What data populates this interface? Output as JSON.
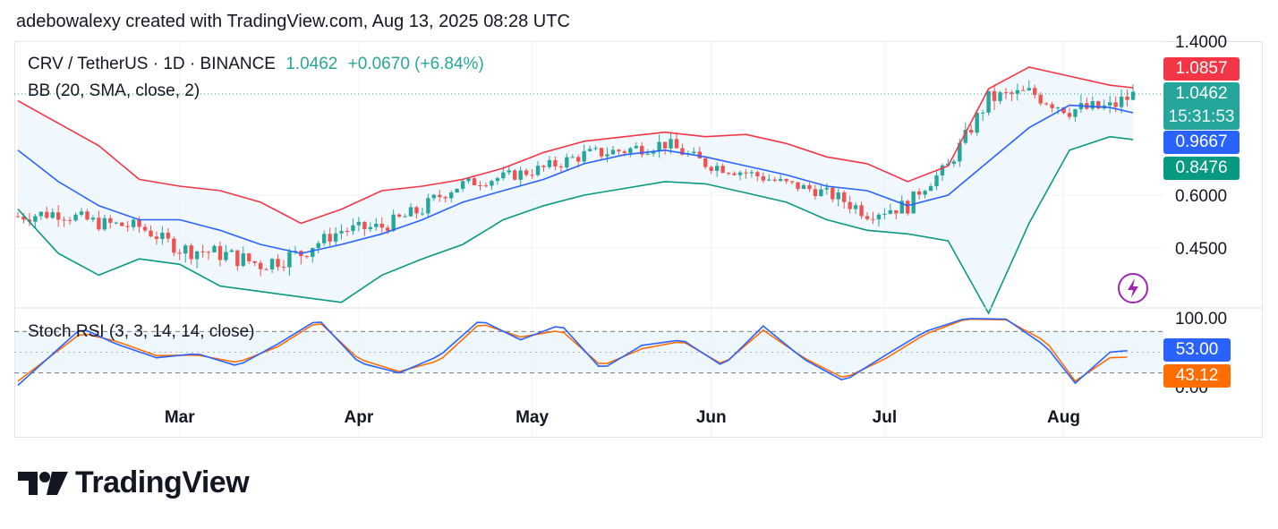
{
  "header": {
    "text": "adebowalexy created with TradingView.com, Aug 13, 2025 08:28 UTC"
  },
  "legend": {
    "symbol": "CRV / TetherUS · 1D · BINANCE",
    "price": "1.0462",
    "change": "+0.0670 (+6.84%)",
    "indicator": "BB (20, SMA, close, 2)"
  },
  "stoch_legend": "Stoch RSI (3, 3, 14, 14, close)",
  "price_tags": {
    "upper": "1.0857",
    "last": "1.0462",
    "countdown": "15:31:53",
    "basis": "0.9667",
    "lower": "0.8476"
  },
  "stoch_tags": {
    "k": "53.00",
    "d": "43.12"
  },
  "colors": {
    "up": "#26a69a",
    "down": "#ef5350",
    "upper_band": "#f23645",
    "basis": "#2962ff",
    "lower_band": "#089981",
    "k_line": "#2962ff",
    "d_line": "#ff6d00",
    "band_fill": "#e3f2fd",
    "last_tag": "#26a69a",
    "brand": "#131722"
  },
  "icons": {
    "replay": "lightning-icon",
    "logo": "tradingview-logo-icon"
  },
  "brand": {
    "name": "TradingView"
  },
  "chart_data": [
    {
      "type": "candlestick",
      "title": "CRV / TetherUS · 1D · BINANCE",
      "overlay": "BB (20, SMA, close, 2)",
      "y_ticks": [
        "1.4000",
        "0.6000",
        "0.4500"
      ],
      "y_tick_values": [
        1.4,
        0.6,
        0.45
      ],
      "x_ticks": [
        "Mar",
        "Apr",
        "May",
        "Jun",
        "Jul",
        "Aug"
      ],
      "x_tick_dates": [
        "2025-03-01",
        "2025-04-01",
        "2025-05-01",
        "2025-06-01",
        "2025-07-01",
        "2025-08-01"
      ],
      "series": [
        {
          "name": "upper",
          "points": [
            [
              "2025-02-01",
              1.02
            ],
            [
              "2025-02-08",
              0.92
            ],
            [
              "2025-02-15",
              0.82
            ],
            [
              "2025-02-22",
              0.67
            ],
            [
              "2025-03-01",
              0.64
            ],
            [
              "2025-03-08",
              0.62
            ],
            [
              "2025-03-15",
              0.58
            ],
            [
              "2025-03-22",
              0.52
            ],
            [
              "2025-03-29",
              0.56
            ],
            [
              "2025-04-05",
              0.62
            ],
            [
              "2025-04-12",
              0.64
            ],
            [
              "2025-04-19",
              0.67
            ],
            [
              "2025-04-26",
              0.72
            ],
            [
              "2025-05-03",
              0.79
            ],
            [
              "2025-05-10",
              0.84
            ],
            [
              "2025-05-17",
              0.86
            ],
            [
              "2025-05-24",
              0.88
            ],
            [
              "2025-05-31",
              0.86
            ],
            [
              "2025-06-07",
              0.87
            ],
            [
              "2025-06-14",
              0.83
            ],
            [
              "2025-06-21",
              0.77
            ],
            [
              "2025-06-28",
              0.74
            ],
            [
              "2025-07-05",
              0.66
            ],
            [
              "2025-07-12",
              0.73
            ],
            [
              "2025-07-19",
              1.08
            ],
            [
              "2025-07-26",
              1.2
            ],
            [
              "2025-08-02",
              1.15
            ],
            [
              "2025-08-09",
              1.1
            ],
            [
              "2025-08-13",
              1.0857
            ]
          ]
        },
        {
          "name": "basis",
          "points": [
            [
              "2025-02-01",
              0.8
            ],
            [
              "2025-02-08",
              0.66
            ],
            [
              "2025-02-15",
              0.57
            ],
            [
              "2025-02-22",
              0.53
            ],
            [
              "2025-03-01",
              0.53
            ],
            [
              "2025-03-08",
              0.5
            ],
            [
              "2025-03-15",
              0.46
            ],
            [
              "2025-03-22",
              0.44
            ],
            [
              "2025-03-29",
              0.46
            ],
            [
              "2025-04-05",
              0.49
            ],
            [
              "2025-04-12",
              0.53
            ],
            [
              "2025-04-19",
              0.58
            ],
            [
              "2025-04-26",
              0.62
            ],
            [
              "2025-05-03",
              0.67
            ],
            [
              "2025-05-10",
              0.74
            ],
            [
              "2025-05-17",
              0.78
            ],
            [
              "2025-05-24",
              0.8
            ],
            [
              "2025-05-31",
              0.77
            ],
            [
              "2025-06-07",
              0.73
            ],
            [
              "2025-06-14",
              0.69
            ],
            [
              "2025-06-21",
              0.64
            ],
            [
              "2025-06-28",
              0.62
            ],
            [
              "2025-07-05",
              0.57
            ],
            [
              "2025-07-12",
              0.6
            ],
            [
              "2025-07-19",
              0.75
            ],
            [
              "2025-07-26",
              0.9
            ],
            [
              "2025-08-02",
              1.0
            ],
            [
              "2025-08-09",
              0.99
            ],
            [
              "2025-08-13",
              0.9667
            ]
          ]
        },
        {
          "name": "lower",
          "points": [
            [
              "2025-02-01",
              0.56
            ],
            [
              "2025-02-08",
              0.44
            ],
            [
              "2025-02-15",
              0.4
            ],
            [
              "2025-02-22",
              0.43
            ],
            [
              "2025-03-01",
              0.42
            ],
            [
              "2025-03-08",
              0.38
            ],
            [
              "2025-03-15",
              0.37
            ],
            [
              "2025-03-22",
              0.36
            ],
            [
              "2025-03-29",
              0.35
            ],
            [
              "2025-04-05",
              0.4
            ],
            [
              "2025-04-12",
              0.43
            ],
            [
              "2025-04-19",
              0.46
            ],
            [
              "2025-04-26",
              0.53
            ],
            [
              "2025-05-03",
              0.57
            ],
            [
              "2025-05-10",
              0.6
            ],
            [
              "2025-05-17",
              0.63
            ],
            [
              "2025-05-24",
              0.66
            ],
            [
              "2025-05-31",
              0.65
            ],
            [
              "2025-06-07",
              0.61
            ],
            [
              "2025-06-14",
              0.58
            ],
            [
              "2025-06-21",
              0.53
            ],
            [
              "2025-06-28",
              0.5
            ],
            [
              "2025-07-05",
              0.49
            ],
            [
              "2025-07-12",
              0.47
            ],
            [
              "2025-07-19",
              0.33
            ],
            [
              "2025-07-26",
              0.52
            ],
            [
              "2025-08-02",
              0.8
            ],
            [
              "2025-08-09",
              0.86
            ],
            [
              "2025-08-13",
              0.8476
            ]
          ]
        },
        {
          "name": "close",
          "points": [
            [
              "2025-02-01",
              0.54
            ],
            [
              "2025-02-08",
              0.55
            ],
            [
              "2025-02-15",
              0.52
            ],
            [
              "2025-02-22",
              0.51
            ],
            [
              "2025-03-01",
              0.45
            ],
            [
              "2025-03-08",
              0.44
            ],
            [
              "2025-03-15",
              0.42
            ],
            [
              "2025-03-22",
              0.44
            ],
            [
              "2025-03-29",
              0.5
            ],
            [
              "2025-04-05",
              0.51
            ],
            [
              "2025-04-12",
              0.56
            ],
            [
              "2025-04-19",
              0.65
            ],
            [
              "2025-04-26",
              0.68
            ],
            [
              "2025-05-03",
              0.72
            ],
            [
              "2025-05-10",
              0.78
            ],
            [
              "2025-05-17",
              0.8
            ],
            [
              "2025-05-24",
              0.83
            ],
            [
              "2025-05-31",
              0.74
            ],
            [
              "2025-06-07",
              0.7
            ],
            [
              "2025-06-14",
              0.65
            ],
            [
              "2025-06-21",
              0.61
            ],
            [
              "2025-06-28",
              0.55
            ],
            [
              "2025-07-05",
              0.57
            ],
            [
              "2025-07-12",
              0.73
            ],
            [
              "2025-07-19",
              1.03
            ],
            [
              "2025-07-26",
              1.06
            ],
            [
              "2025-08-02",
              0.98
            ],
            [
              "2025-08-09",
              0.99
            ],
            [
              "2025-08-13",
              1.0462
            ]
          ]
        }
      ]
    },
    {
      "type": "line",
      "title": "Stoch RSI (3, 3, 14, 14, close)",
      "ylim": [
        0,
        100
      ],
      "y_ticks": [
        "100.00",
        "0.00"
      ],
      "bands": [
        80,
        20
      ],
      "series": [
        {
          "name": "K",
          "points": [
            [
              "2025-02-01",
              2
            ],
            [
              "2025-02-12",
              85
            ],
            [
              "2025-02-18",
              62
            ],
            [
              "2025-02-25",
              42
            ],
            [
              "2025-03-04",
              48
            ],
            [
              "2025-03-11",
              30
            ],
            [
              "2025-03-18",
              62
            ],
            [
              "2025-03-25",
              98
            ],
            [
              "2025-04-01",
              35
            ],
            [
              "2025-04-08",
              20
            ],
            [
              "2025-04-15",
              45
            ],
            [
              "2025-04-22",
              97
            ],
            [
              "2025-04-29",
              68
            ],
            [
              "2025-05-06",
              90
            ],
            [
              "2025-05-13",
              25
            ],
            [
              "2025-05-20",
              60
            ],
            [
              "2025-05-27",
              68
            ],
            [
              "2025-06-03",
              30
            ],
            [
              "2025-06-10",
              88
            ],
            [
              "2025-06-17",
              40
            ],
            [
              "2025-06-24",
              8
            ],
            [
              "2025-07-01",
              45
            ],
            [
              "2025-07-08",
              80
            ],
            [
              "2025-07-15",
              99
            ],
            [
              "2025-07-22",
              98
            ],
            [
              "2025-07-29",
              58
            ],
            [
              "2025-08-03",
              5
            ],
            [
              "2025-08-09",
              50
            ],
            [
              "2025-08-13",
              53
            ]
          ]
        },
        {
          "name": "D",
          "points": [
            [
              "2025-02-01",
              8
            ],
            [
              "2025-02-12",
              78
            ],
            [
              "2025-02-18",
              66
            ],
            [
              "2025-02-25",
              45
            ],
            [
              "2025-03-04",
              46
            ],
            [
              "2025-03-11",
              35
            ],
            [
              "2025-03-18",
              58
            ],
            [
              "2025-03-25",
              95
            ],
            [
              "2025-04-01",
              40
            ],
            [
              "2025-04-08",
              22
            ],
            [
              "2025-04-15",
              38
            ],
            [
              "2025-04-22",
              92
            ],
            [
              "2025-04-29",
              72
            ],
            [
              "2025-05-06",
              82
            ],
            [
              "2025-05-13",
              30
            ],
            [
              "2025-05-20",
              55
            ],
            [
              "2025-05-27",
              66
            ],
            [
              "2025-06-03",
              32
            ],
            [
              "2025-06-10",
              82
            ],
            [
              "2025-06-17",
              42
            ],
            [
              "2025-06-24",
              12
            ],
            [
              "2025-07-01",
              40
            ],
            [
              "2025-07-08",
              76
            ],
            [
              "2025-07-15",
              98
            ],
            [
              "2025-07-22",
              97
            ],
            [
              "2025-07-29",
              65
            ],
            [
              "2025-08-03",
              8
            ],
            [
              "2025-08-09",
              42
            ],
            [
              "2025-08-13",
              43.12
            ]
          ]
        }
      ]
    }
  ]
}
